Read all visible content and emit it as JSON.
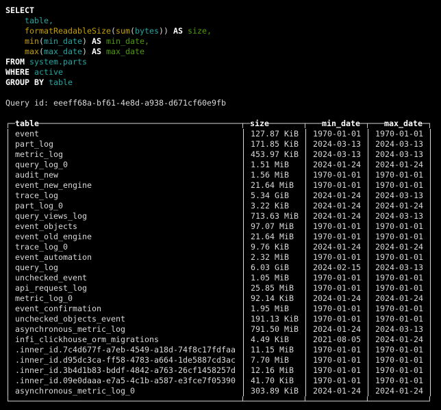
{
  "terminal": {
    "colors": {
      "background": "#000000",
      "text": "#d9d9d9",
      "border": "#d9d9d9",
      "keyword": "#ffffff",
      "header": "#ffffff",
      "identifier": "#23a5a0",
      "function": "#c4a000",
      "alias": "#4e9a06"
    },
    "sql": {
      "lines": [
        [
          {
            "t": "SELECT",
            "c": "kw"
          }
        ],
        [
          {
            "t": "    ",
            "c": "tx"
          },
          {
            "t": "table,",
            "c": "id"
          }
        ],
        [
          {
            "t": "    ",
            "c": "tx"
          },
          {
            "t": "formatReadableSize",
            "c": "fn"
          },
          {
            "t": "(",
            "c": "tx"
          },
          {
            "t": "sum",
            "c": "fn"
          },
          {
            "t": "(",
            "c": "tx"
          },
          {
            "t": "bytes",
            "c": "id"
          },
          {
            "t": ")) ",
            "c": "tx"
          },
          {
            "t": "AS",
            "c": "kw"
          },
          {
            "t": " ",
            "c": "tx"
          },
          {
            "t": "size,",
            "c": "al"
          }
        ],
        [
          {
            "t": "    ",
            "c": "tx"
          },
          {
            "t": "min",
            "c": "fn"
          },
          {
            "t": "(",
            "c": "tx"
          },
          {
            "t": "min_date",
            "c": "id"
          },
          {
            "t": ") ",
            "c": "tx"
          },
          {
            "t": "AS",
            "c": "kw"
          },
          {
            "t": " ",
            "c": "tx"
          },
          {
            "t": "min_date,",
            "c": "al"
          }
        ],
        [
          {
            "t": "    ",
            "c": "tx"
          },
          {
            "t": "max",
            "c": "fn"
          },
          {
            "t": "(",
            "c": "tx"
          },
          {
            "t": "max_date",
            "c": "id"
          },
          {
            "t": ") ",
            "c": "tx"
          },
          {
            "t": "AS",
            "c": "kw"
          },
          {
            "t": " ",
            "c": "tx"
          },
          {
            "t": "max_date",
            "c": "al"
          }
        ],
        [
          {
            "t": "FROM",
            "c": "kw"
          },
          {
            "t": " ",
            "c": "tx"
          },
          {
            "t": "system.parts",
            "c": "id"
          }
        ],
        [
          {
            "t": "WHERE",
            "c": "kw"
          },
          {
            "t": " ",
            "c": "tx"
          },
          {
            "t": "active",
            "c": "id"
          }
        ],
        [
          {
            "t": "GROUP BY",
            "c": "kw"
          },
          {
            "t": " ",
            "c": "tx"
          },
          {
            "t": "table",
            "c": "id"
          }
        ]
      ]
    },
    "query_id": {
      "label": "Query id: ",
      "value": "eeeff68a-bf61-4e8d-a938-d671cf60e9fb"
    }
  },
  "results": {
    "columns": [
      "table",
      "size",
      "min_date",
      "max_date"
    ],
    "rows": [
      {
        "table": "event",
        "size": "127.87 KiB",
        "min_date": "1970-01-01",
        "max_date": "1970-01-01"
      },
      {
        "table": "part_log",
        "size": "171.85 KiB",
        "min_date": "2024-03-13",
        "max_date": "2024-03-13"
      },
      {
        "table": "metric_log",
        "size": "453.97 KiB",
        "min_date": "2024-03-13",
        "max_date": "2024-03-13"
      },
      {
        "table": "query_log_0",
        "size": "1.51 MiB",
        "min_date": "2024-01-24",
        "max_date": "2024-01-24"
      },
      {
        "table": "audit_new",
        "size": "1.56 MiB",
        "min_date": "1970-01-01",
        "max_date": "1970-01-01"
      },
      {
        "table": "event_new_engine",
        "size": "21.64 MiB",
        "min_date": "1970-01-01",
        "max_date": "1970-01-01"
      },
      {
        "table": "trace_log",
        "size": "5.34 GiB",
        "min_date": "2024-01-24",
        "max_date": "2024-03-13"
      },
      {
        "table": "part_log_0",
        "size": "3.22 KiB",
        "min_date": "2024-01-24",
        "max_date": "2024-01-24"
      },
      {
        "table": "query_views_log",
        "size": "713.63 MiB",
        "min_date": "2024-01-24",
        "max_date": "2024-03-13"
      },
      {
        "table": "event_objects",
        "size": "97.07 MiB",
        "min_date": "1970-01-01",
        "max_date": "1970-01-01"
      },
      {
        "table": "event_old_engine",
        "size": "21.64 MiB",
        "min_date": "1970-01-01",
        "max_date": "1970-01-01"
      },
      {
        "table": "trace_log_0",
        "size": "9.76 KiB",
        "min_date": "2024-01-24",
        "max_date": "2024-01-24"
      },
      {
        "table": "event_automation",
        "size": "2.32 MiB",
        "min_date": "1970-01-01",
        "max_date": "1970-01-01"
      },
      {
        "table": "query_log",
        "size": "6.03 GiB",
        "min_date": "2024-02-15",
        "max_date": "2024-03-13"
      },
      {
        "table": "unchecked_event",
        "size": "1.05 MiB",
        "min_date": "1970-01-01",
        "max_date": "1970-01-01"
      },
      {
        "table": "api_request_log",
        "size": "25.85 MiB",
        "min_date": "1970-01-01",
        "max_date": "1970-01-01"
      },
      {
        "table": "metric_log_0",
        "size": "92.14 KiB",
        "min_date": "2024-01-24",
        "max_date": "2024-01-24"
      },
      {
        "table": "event_confirmation",
        "size": "1.95 MiB",
        "min_date": "1970-01-01",
        "max_date": "1970-01-01"
      },
      {
        "table": "unchecked_objects_event",
        "size": "191.13 KiB",
        "min_date": "1970-01-01",
        "max_date": "1970-01-01"
      },
      {
        "table": "asynchronous_metric_log",
        "size": "791.50 MiB",
        "min_date": "2024-01-24",
        "max_date": "2024-03-13"
      },
      {
        "table": "infi_clickhouse_orm_migrations",
        "size": "4.49 KiB",
        "min_date": "2021-08-05",
        "max_date": "2024-01-24"
      },
      {
        "table": ".inner_id.7c4d677f-a7eb-4549-a18d-74f8c17fdfaa",
        "size": "11.15 MiB",
        "min_date": "1970-01-01",
        "max_date": "1970-01-01"
      },
      {
        "table": ".inner_id.d95dc3ca-ff58-4783-a664-1de5887cd3ac",
        "size": "7.70 MiB",
        "min_date": "1970-01-01",
        "max_date": "1970-01-01"
      },
      {
        "table": ".inner_id.3b4d1b83-bddf-4842-a763-26cf1458257d",
        "size": "12.16 MiB",
        "min_date": "1970-01-01",
        "max_date": "1970-01-01"
      },
      {
        "table": ".inner_id.09e0daaa-e7a5-4c1b-a587-e3fce7f05390",
        "size": "41.70 KiB",
        "min_date": "1970-01-01",
        "max_date": "1970-01-01"
      },
      {
        "table": "asynchronous_metric_log_0",
        "size": "303.89 KiB",
        "min_date": "2024-01-24",
        "max_date": "2024-01-24"
      }
    ]
  }
}
